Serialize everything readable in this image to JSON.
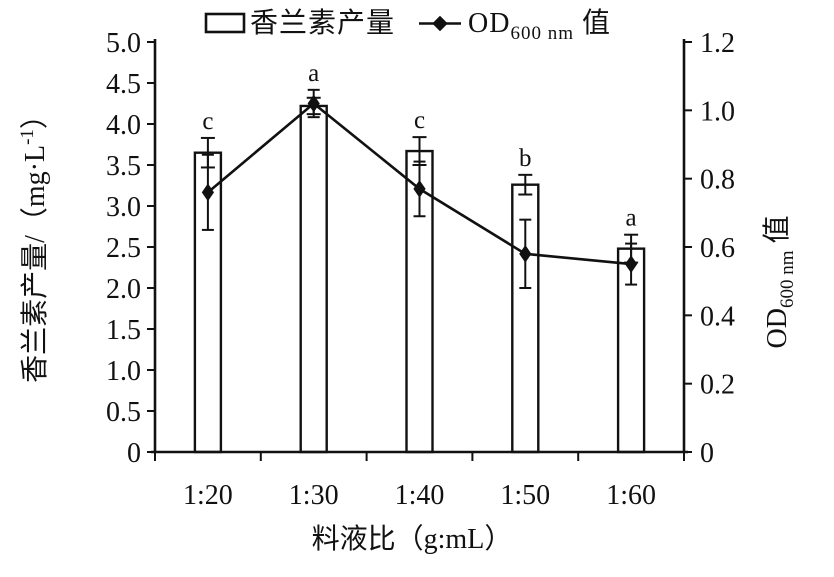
{
  "chart_data": {
    "type": "bar",
    "combo": "bar+line",
    "categories": [
      "1:20",
      "1:30",
      "1:40",
      "1:50",
      "1:60"
    ],
    "series": [
      {
        "name": "香兰素产量",
        "type": "bar",
        "axis": "left",
        "values": [
          3.65,
          4.22,
          3.67,
          3.26,
          2.48
        ],
        "errors": [
          0.18,
          0.1,
          0.17,
          0.12,
          0.17
        ],
        "sig_letters": [
          "c",
          "a",
          "c",
          "b",
          "a"
        ]
      },
      {
        "name": "OD600nm值",
        "type": "line",
        "axis": "right",
        "marker": "diamond",
        "values": [
          0.76,
          1.02,
          0.77,
          0.58,
          0.55
        ],
        "errors": [
          0.11,
          0.04,
          0.08,
          0.1,
          0.06
        ]
      }
    ],
    "left_axis": {
      "title_pre": "香兰素产量/（mg·L",
      "title_sup": "-1",
      "title_post": "）",
      "min": 0,
      "max": 5.0,
      "step": 0.5,
      "tick_labels": [
        "0",
        "0.5",
        "1.0",
        "1.5",
        "2.0",
        "2.5",
        "3.0",
        "3.5",
        "4.0",
        "4.5",
        "5.0"
      ]
    },
    "right_axis": {
      "title_main": "OD",
      "title_sub": "600 nm",
      "title_post": " 值",
      "min": 0,
      "max": 1.2,
      "step": 0.2,
      "tick_labels": [
        "0",
        "0.2",
        "0.4",
        "0.6",
        "0.8",
        "1.0",
        "1.2"
      ]
    },
    "x_axis": {
      "title": "料液比（g:mL）"
    },
    "legend": {
      "position": "top-center",
      "items": [
        {
          "marker": "open-rect",
          "text": "香兰素产量"
        },
        {
          "marker": "diamond-line",
          "text_main": "OD",
          "text_sub": "600 nm",
          "text_post": " 值"
        }
      ]
    },
    "style": {
      "ink": "#111111",
      "background": "#ffffff",
      "bar_fill": "#ffffff",
      "grid": "off"
    }
  }
}
